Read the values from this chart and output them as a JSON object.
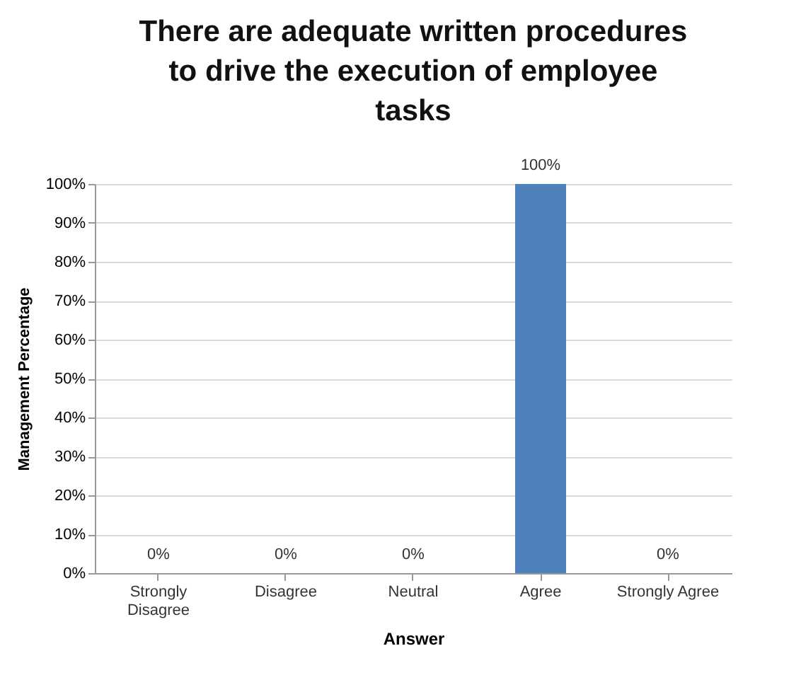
{
  "chart_data": {
    "type": "bar",
    "title": "There are adequate written procedures to drive the execution of employee tasks",
    "xlabel": "Answer",
    "ylabel": "Management Percentage",
    "categories": [
      "Strongly Disagree",
      "Disagree",
      "Neutral",
      "Agree",
      "Strongly Agree"
    ],
    "values": [
      0,
      0,
      0,
      100,
      0
    ],
    "value_labels": [
      "0%",
      "0%",
      "0%",
      "100%",
      "0%"
    ],
    "color": "#4f81bd",
    "ylim": [
      0,
      100
    ],
    "yticks": [
      {
        "value": 0,
        "label": "0%"
      },
      {
        "value": 10,
        "label": "10%"
      },
      {
        "value": 20,
        "label": "20%"
      },
      {
        "value": 30,
        "label": "30%"
      },
      {
        "value": 40,
        "label": "40%"
      },
      {
        "value": 50,
        "label": "50%"
      },
      {
        "value": 60,
        "label": "60%"
      },
      {
        "value": 70,
        "label": "70%"
      },
      {
        "value": 80,
        "label": "80%"
      },
      {
        "value": 90,
        "label": "90%"
      },
      {
        "value": 100,
        "label": "100%"
      }
    ],
    "grid": "y"
  }
}
